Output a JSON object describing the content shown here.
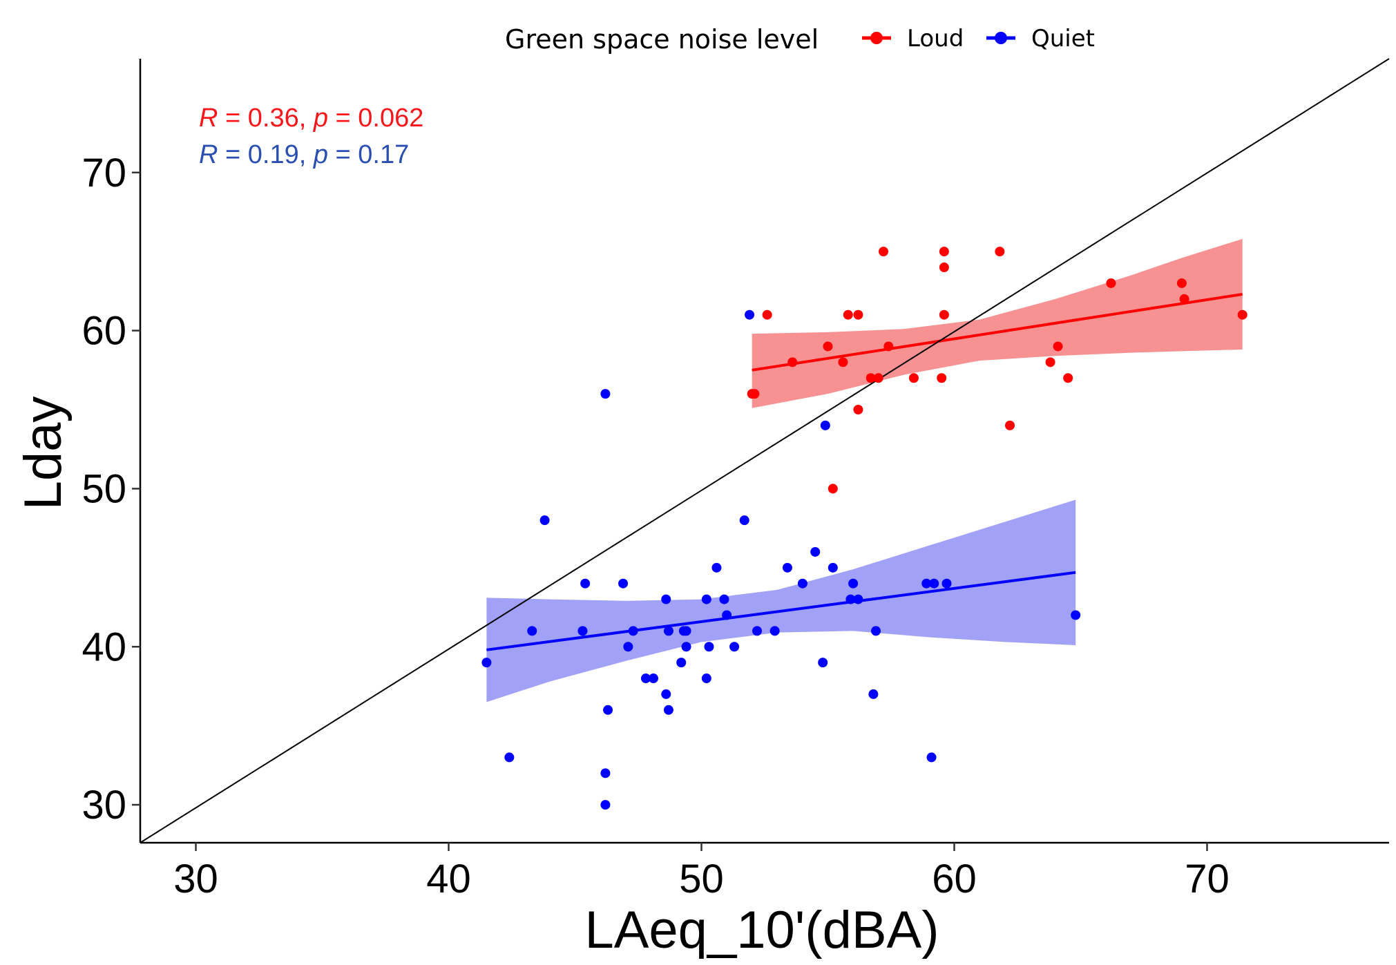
{
  "chart_data": {
    "type": "scatter",
    "xlabel": "LAeq_10'(dBA)",
    "ylabel": "Lday",
    "xlim": [
      27.8,
      77.2
    ],
    "ylim": [
      27.6,
      77.2
    ],
    "xticks": [
      30,
      40,
      50,
      60,
      70
    ],
    "yticks": [
      30,
      40,
      50,
      60,
      70
    ],
    "grid": false,
    "reference_line": {
      "x": [
        27.8,
        77.2
      ],
      "y": [
        27.6,
        77.2
      ]
    },
    "legend": {
      "title": "Green space noise level",
      "placement": "top",
      "entries": [
        "Loud",
        "Quiet"
      ]
    },
    "annotations": [
      {
        "R": "0.36",
        "p": "0.062",
        "color": "#f8161a"
      },
      {
        "R": "0.19",
        "p": "0.17",
        "color": "#2a4fb0"
      }
    ],
    "series": [
      {
        "name": "Loud",
        "color": "#ff0000",
        "band_color": "#f88c8c",
        "points": [
          [
            52.0,
            56
          ],
          [
            52.1,
            56
          ],
          [
            52.6,
            61
          ],
          [
            53.6,
            58
          ],
          [
            55.0,
            59
          ],
          [
            55.2,
            50
          ],
          [
            55.6,
            58
          ],
          [
            55.8,
            61
          ],
          [
            56.2,
            61
          ],
          [
            56.2,
            55
          ],
          [
            56.7,
            57
          ],
          [
            57.0,
            57
          ],
          [
            57.2,
            65
          ],
          [
            57.4,
            59
          ],
          [
            58.4,
            57
          ],
          [
            59.5,
            57
          ],
          [
            59.6,
            65
          ],
          [
            59.6,
            64
          ],
          [
            59.6,
            61
          ],
          [
            61.8,
            65
          ],
          [
            62.2,
            54
          ],
          [
            63.8,
            58
          ],
          [
            64.1,
            59
          ],
          [
            64.5,
            57
          ],
          [
            66.2,
            63
          ],
          [
            69.0,
            63
          ],
          [
            69.1,
            62
          ],
          [
            71.4,
            61
          ]
        ],
        "fit": {
          "x": [
            52.0,
            71.4
          ],
          "y": [
            57.5,
            62.3
          ]
        },
        "ci": {
          "x": [
            52.0,
            55.0,
            58.0,
            61.0,
            64.0,
            67.0,
            69.0,
            71.4
          ],
          "upper": [
            59.8,
            59.9,
            60.1,
            60.7,
            62.0,
            63.5,
            64.6,
            65.8
          ],
          "lower": [
            55.1,
            56.0,
            57.2,
            58.1,
            58.4,
            58.6,
            58.7,
            58.8
          ]
        }
      },
      {
        "name": "Quiet",
        "color": "#0000ff",
        "band_color": "#9c9cf8",
        "points": [
          [
            41.5,
            39
          ],
          [
            42.4,
            33
          ],
          [
            43.3,
            41
          ],
          [
            43.8,
            48
          ],
          [
            45.3,
            41
          ],
          [
            45.4,
            44
          ],
          [
            46.2,
            56
          ],
          [
            46.2,
            32
          ],
          [
            46.2,
            30
          ],
          [
            46.3,
            36
          ],
          [
            46.9,
            44
          ],
          [
            47.1,
            40
          ],
          [
            47.3,
            41
          ],
          [
            47.8,
            38
          ],
          [
            48.1,
            38
          ],
          [
            48.6,
            43
          ],
          [
            48.6,
            37
          ],
          [
            48.7,
            41
          ],
          [
            48.7,
            36
          ],
          [
            49.2,
            39
          ],
          [
            49.3,
            41
          ],
          [
            49.4,
            40
          ],
          [
            49.4,
            41
          ],
          [
            50.2,
            43
          ],
          [
            50.2,
            38
          ],
          [
            50.3,
            40
          ],
          [
            50.6,
            45
          ],
          [
            50.9,
            43
          ],
          [
            51.0,
            42
          ],
          [
            51.3,
            40
          ],
          [
            51.7,
            48
          ],
          [
            51.9,
            61
          ],
          [
            52.2,
            41
          ],
          [
            52.9,
            41
          ],
          [
            53.4,
            45
          ],
          [
            54.0,
            44
          ],
          [
            54.5,
            46
          ],
          [
            54.8,
            39
          ],
          [
            54.9,
            54
          ],
          [
            55.2,
            45
          ],
          [
            55.9,
            43
          ],
          [
            56.0,
            44
          ],
          [
            56.2,
            43
          ],
          [
            56.9,
            41
          ],
          [
            56.8,
            37
          ],
          [
            58.9,
            44
          ],
          [
            59.2,
            44
          ],
          [
            59.1,
            33
          ],
          [
            59.7,
            44
          ],
          [
            64.8,
            42
          ]
        ],
        "fit": {
          "x": [
            41.5,
            64.8
          ],
          "y": [
            39.8,
            44.7
          ]
        },
        "ci": {
          "x": [
            41.5,
            44.0,
            47.0,
            50.0,
            53.0,
            56.0,
            59.0,
            62.0,
            64.8
          ],
          "upper": [
            43.1,
            43.0,
            42.9,
            43.0,
            43.6,
            44.9,
            46.4,
            47.9,
            49.3
          ],
          "lower": [
            36.5,
            37.8,
            39.1,
            40.3,
            40.9,
            41.0,
            40.6,
            40.3,
            40.1
          ]
        }
      }
    ]
  }
}
